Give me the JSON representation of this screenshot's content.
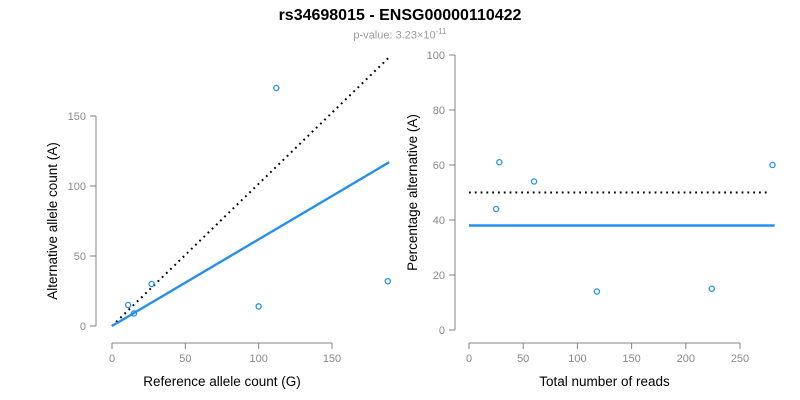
{
  "title": "rs34698015 - ENSG00000110422",
  "subtitle": {
    "prefix": "p-value: 3.23×10",
    "exponent": "-11"
  },
  "colors": {
    "accent_blue": "#2590EB",
    "reference_line_black": "#000000",
    "axis_gray": "#858585",
    "tick_label_gray": "#8a8a8a",
    "title_black": "#000000",
    "subtitle_gray": "#9b9b9b",
    "background": "#ffffff"
  },
  "chart_data": [
    {
      "type": "scatter",
      "panel": "left",
      "xlabel": "Reference allele count (G)",
      "ylabel": "Alternative allele count (A)",
      "xticks": [
        0,
        50,
        100,
        150
      ],
      "yticks": [
        0,
        50,
        100,
        150
      ],
      "xlim": [
        0,
        192
      ],
      "ylim": [
        0,
        195
      ],
      "grid": false,
      "marker": "open-circle",
      "points": [
        [
          11,
          15
        ],
        [
          15,
          9
        ],
        [
          27,
          30
        ],
        [
          100,
          14
        ],
        [
          112,
          170
        ],
        [
          188,
          32
        ]
      ],
      "lines": [
        {
          "name": "expected-identity-line",
          "style": "dotted",
          "color": "#000000",
          "x": [
            0,
            190
          ],
          "y": [
            0,
            193
          ]
        },
        {
          "name": "fitted-ratio-line",
          "style": "solid",
          "color": "#2590EB",
          "x": [
            0,
            189
          ],
          "y": [
            0,
            117
          ]
        }
      ]
    },
    {
      "type": "scatter",
      "panel": "right",
      "xlabel": "Total number of reads",
      "ylabel": "Percentage alternative (A)",
      "xticks": [
        0,
        50,
        100,
        150,
        200,
        250
      ],
      "yticks": [
        0,
        20,
        40,
        60,
        80,
        100
      ],
      "xlim": [
        0,
        285
      ],
      "ylim": [
        0,
        100
      ],
      "grid": false,
      "marker": "open-circle",
      "points": [
        [
          28,
          61
        ],
        [
          25,
          44
        ],
        [
          60,
          54
        ],
        [
          118,
          14
        ],
        [
          224,
          15
        ],
        [
          280,
          60
        ]
      ],
      "lines": [
        {
          "name": "expected-50pct-line",
          "style": "dotted",
          "color": "#000000",
          "x": [
            0,
            277
          ],
          "y": [
            50,
            50
          ]
        },
        {
          "name": "overall-pct-line",
          "style": "solid",
          "color": "#2590EB",
          "x": [
            0,
            282
          ],
          "y": [
            38,
            38
          ]
        }
      ]
    }
  ]
}
